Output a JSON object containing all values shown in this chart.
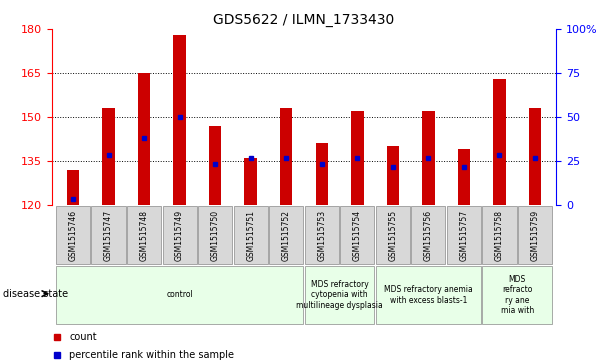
{
  "title": "GDS5622 / ILMN_1733430",
  "samples": [
    "GSM1515746",
    "GSM1515747",
    "GSM1515748",
    "GSM1515749",
    "GSM1515750",
    "GSM1515751",
    "GSM1515752",
    "GSM1515753",
    "GSM1515754",
    "GSM1515755",
    "GSM1515756",
    "GSM1515757",
    "GSM1515758",
    "GSM1515759"
  ],
  "bar_tops": [
    132,
    153,
    165,
    178,
    147,
    136,
    153,
    141,
    152,
    140,
    152,
    139,
    163,
    153
  ],
  "bar_bottom": 120,
  "percentile_values": [
    122,
    137,
    143,
    150,
    134,
    136,
    136,
    134,
    136,
    133,
    136,
    133,
    137,
    136
  ],
  "ylim_left": [
    120,
    180
  ],
  "ylim_right": [
    0,
    100
  ],
  "yticks_left": [
    120,
    135,
    150,
    165,
    180
  ],
  "yticks_right": [
    0,
    25,
    50,
    75,
    100
  ],
  "bar_color": "#cc0000",
  "percentile_color": "#0000cc",
  "disease_groups": [
    {
      "label": "control",
      "start": 0,
      "end": 7
    },
    {
      "label": "MDS refractory\ncytopenia with\nmultilineage dysplasia",
      "start": 7,
      "end": 9
    },
    {
      "label": "MDS refractory anemia\nwith excess blasts-1",
      "start": 9,
      "end": 12
    },
    {
      "label": "MDS\nrefracto\nry ane\nmia with",
      "start": 12,
      "end": 14
    }
  ],
  "disease_bg_color": "#e8ffe8",
  "sample_bg_color": "#d8d8d8",
  "legend_count_label": "count",
  "legend_perc_label": "percentile rank within the sample",
  "bar_color_legend": "#cc0000",
  "perc_color_legend": "#0000cc"
}
